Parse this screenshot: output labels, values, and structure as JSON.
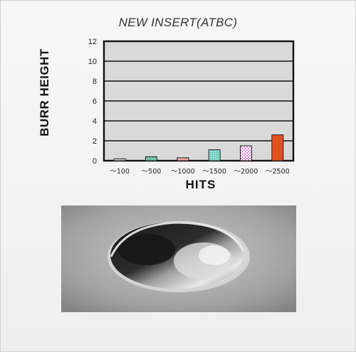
{
  "chart_data": {
    "type": "bar",
    "title": "NEW INSERT(ATBC)",
    "xlabel": "HITS",
    "ylabel": "BURR HEIGHT",
    "categories": [
      "～100",
      "～500",
      "～1000",
      "～1500",
      "～2000",
      "～2500"
    ],
    "values": [
      0.2,
      0.4,
      0.3,
      1.1,
      1.5,
      2.6
    ],
    "ylim": [
      0,
      12
    ],
    "yticks": [
      "0",
      "2",
      "4",
      "6",
      "8",
      "10",
      "12"
    ],
    "grid": true,
    "bar_colors": [
      "#d8d8d8",
      "#3fb98a",
      "#f0a6a0",
      "#57c8b2",
      "#f2a6e6",
      "#e3501f"
    ]
  },
  "colors": {
    "plot_background": "#d9d9d9",
    "frame": "#111111"
  }
}
